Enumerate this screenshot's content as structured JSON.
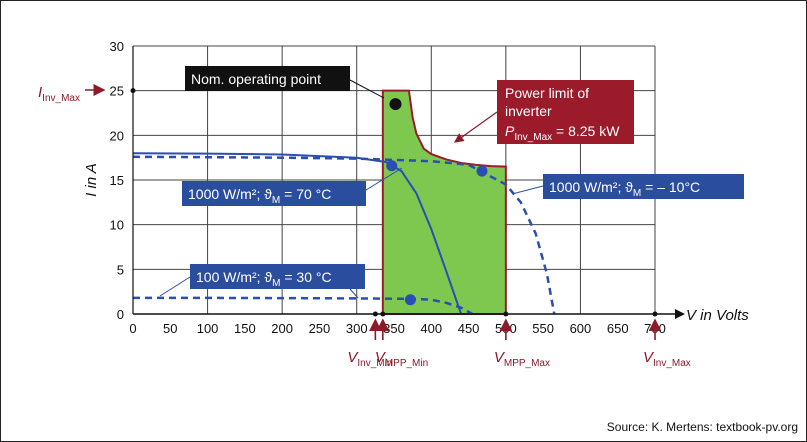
{
  "chart_data": {
    "type": "line",
    "xlim": [
      0,
      700
    ],
    "ylim": [
      0,
      30
    ],
    "x_ticks": [
      0,
      50,
      100,
      150,
      200,
      250,
      300,
      350,
      400,
      450,
      500,
      550,
      600,
      650,
      700
    ],
    "y_ticks": [
      0,
      5,
      10,
      15,
      20,
      25,
      30
    ],
    "xlabel": "V in Volts",
    "ylabel": "I in A",
    "grid": true,
    "colors": {
      "curve": "#2b4fb0",
      "region_fill": "#7ec850",
      "region_edge": "#9b1b2b",
      "label_box": "#2b4d9e",
      "power_box": "#9b1b2b",
      "marker": "#8b1a2b"
    },
    "series": [
      {
        "label": "1000 W/m²; ϑM = 70 °C",
        "style": "solid",
        "x": [
          0,
          100,
          200,
          300,
          340,
          360,
          380,
          400,
          420,
          440
        ],
        "y": [
          18,
          17.95,
          17.85,
          17.5,
          17.0,
          16.0,
          13.5,
          9.5,
          4.8,
          0
        ]
      },
      {
        "label": "1000 W/m²; ϑM = – 10°C",
        "style": "dashed",
        "x": [
          0,
          100,
          200,
          300,
          400,
          450,
          500,
          520,
          540,
          555,
          565
        ],
        "y": [
          17.6,
          17.55,
          17.5,
          17.4,
          17.1,
          16.7,
          14.5,
          12.5,
          9,
          4.5,
          0
        ]
      },
      {
        "label": "100 W/m²; ϑM = 30 °C",
        "style": "dashed",
        "x": [
          0,
          100,
          200,
          300,
          360,
          380,
          400,
          420,
          440,
          455
        ],
        "y": [
          1.8,
          1.8,
          1.78,
          1.75,
          1.7,
          1.68,
          1.6,
          1.25,
          0.7,
          0
        ]
      }
    ],
    "mpp_points": [
      {
        "series": "1000 W/m²; ϑM = 70 °C",
        "x": 347,
        "y": 16.6
      },
      {
        "series": "1000 W/m²; ϑM = – 10°C",
        "x": 468,
        "y": 16.0
      },
      {
        "series": "100 W/m²; ϑM = 30 °C",
        "x": 372,
        "y": 1.6
      }
    ],
    "operating_region": {
      "x": [
        335,
        335,
        370,
        375,
        380,
        390,
        400,
        420,
        440,
        460,
        480,
        500,
        500
      ],
      "y": [
        0,
        25,
        25,
        22,
        20.2,
        18.5,
        17.9,
        17.3,
        16.9,
        16.7,
        16.55,
        16.5,
        0
      ]
    },
    "nominal_point": {
      "label": "Nom. operating point",
      "x": 352,
      "y": 23.5
    },
    "power_limit": {
      "line1": "Power limit of",
      "line2": "inverter",
      "formula_base": "P",
      "formula_sub": "Inv_Max",
      "formula_value": " = 8.25 kW"
    },
    "series_labels": [
      {
        "base": "1000 W/m²; ϑ",
        "sub": "M",
        "tail": " = 70 °C"
      },
      {
        "base": "1000 W/m²; ϑ",
        "sub": "M",
        "tail": " = – 10°C"
      },
      {
        "base": "100 W/m²; ϑ",
        "sub": "M",
        "tail": " = 30 °C"
      }
    ],
    "markers": [
      {
        "base": "V",
        "sub": "Inv_Min",
        "value": 325
      },
      {
        "base": "V",
        "sub": "MPP_Min",
        "value": 335
      },
      {
        "base": "V",
        "sub": "MPP_Max",
        "value": 500
      },
      {
        "base": "V",
        "sub": "Inv_Max",
        "value": 700
      }
    ],
    "i_marker": {
      "base": "I",
      "sub": "Inv_Max",
      "value": 25
    },
    "source": "Source: K. Mertens: textbook-pv.org"
  }
}
